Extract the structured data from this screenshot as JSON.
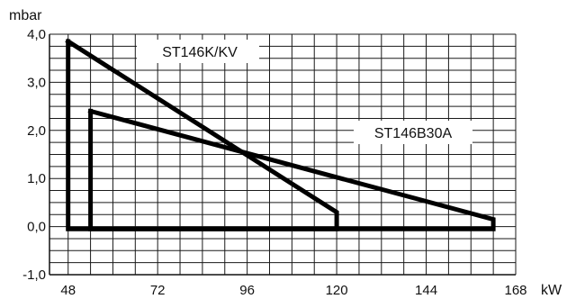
{
  "chart_data": {
    "type": "line",
    "title": "",
    "xlabel": "kW",
    "ylabel": "mbar",
    "xlim": [
      43,
      168
    ],
    "ylim": [
      -1.0,
      4.0
    ],
    "x_ticks": [
      48,
      72,
      96,
      120,
      144,
      168
    ],
    "x_tick_labels": [
      "48",
      "72",
      "96",
      "120",
      "144",
      "168"
    ],
    "y_ticks": [
      -1.0,
      0.0,
      1.0,
      2.0,
      3.0,
      4.0
    ],
    "y_tick_labels": [
      "-1,0",
      "0,0",
      "1,0",
      "2,0",
      "3,0",
      "4,0"
    ],
    "grid": true,
    "legend": "none",
    "series": [
      {
        "name": "ST146K/KV",
        "x": [
          48,
          48,
          120,
          120,
          48
        ],
        "y": [
          3.85,
          -0.05,
          -0.05,
          0.3,
          3.85
        ]
      },
      {
        "name": "ST146B30A",
        "x": [
          54,
          54,
          162,
          162,
          54
        ],
        "y": [
          2.4,
          -0.05,
          -0.05,
          0.15,
          2.4
        ]
      }
    ],
    "colors": {
      "lines": "#000000",
      "grid": "#1a1a1a",
      "background": "#ffffff"
    }
  }
}
